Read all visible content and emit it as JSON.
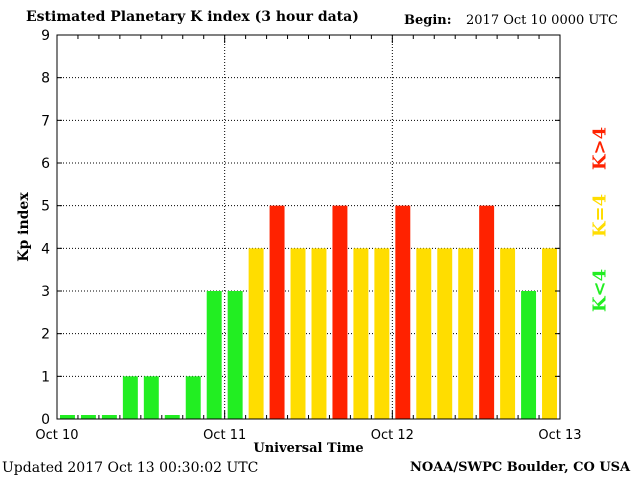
{
  "header": {
    "title": "Estimated Planetary K index (3 hour data)",
    "begin_label": "Begin:",
    "begin_value": "2017 Oct 10 0000 UTC"
  },
  "footer": {
    "updated": "Updated 2017 Oct 13 00:30:02 UTC",
    "credit": "NOAA/SWPC Boulder, CO USA"
  },
  "legend": {
    "high": "K>4",
    "mid": "K=4",
    "low": "K<4"
  },
  "colors": {
    "low": "#22ee22",
    "mid": "#ffdd00",
    "high": "#ff2200"
  },
  "chart_data": {
    "type": "bar",
    "title": "Estimated Planetary K index (3 hour data)",
    "xlabel": "Universal Time",
    "ylabel": "Kp index",
    "ylim": [
      0,
      9
    ],
    "yticks": [
      0,
      1,
      2,
      3,
      4,
      5,
      6,
      7,
      8,
      9
    ],
    "xtick_labels": [
      "Oct 10",
      "Oct 11",
      "Oct 12",
      "Oct 13"
    ],
    "grid": true,
    "bars_per_day": 8,
    "values": [
      0,
      0,
      0,
      1,
      1,
      0,
      1,
      3,
      3,
      4,
      5,
      4,
      4,
      5,
      4,
      4,
      5,
      4,
      4,
      4,
      5,
      4,
      3,
      4
    ]
  }
}
